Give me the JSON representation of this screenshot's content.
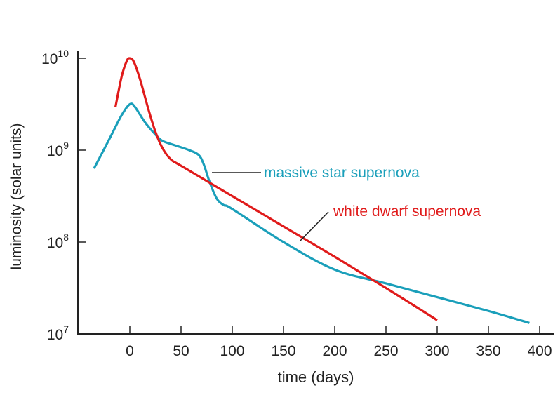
{
  "chart_data": {
    "type": "line",
    "title": "",
    "xlabel": "time (days)",
    "ylabel": "luminosity (solar units)",
    "xlim": [
      -45,
      420
    ],
    "ylim_log10": [
      7,
      10
    ],
    "y_scale": "log",
    "x_ticks": [
      0,
      50,
      100,
      150,
      200,
      250,
      300,
      350,
      400
    ],
    "x_tick_labels": [
      "0",
      "50",
      "100",
      "150",
      "200",
      "250",
      "300",
      "350",
      "400"
    ],
    "y_ticks_log10": [
      7,
      8,
      9,
      10
    ],
    "y_tick_labels": [
      {
        "base": "10",
        "exp": "7"
      },
      {
        "base": "10",
        "exp": "8"
      },
      {
        "base": "10",
        "exp": "9"
      },
      {
        "base": "10",
        "exp": "10"
      }
    ],
    "grid": false,
    "series": [
      {
        "name": "massive star supernova",
        "color": "#1a9fba",
        "x": [
          -35,
          -20,
          -8,
          0,
          5,
          15,
          25,
          32,
          45,
          58,
          67,
          72,
          78,
          85,
          92,
          100,
          150,
          200,
          250,
          300,
          350,
          390
        ],
        "log10_y": [
          8.8,
          9.12,
          9.38,
          9.5,
          9.47,
          9.3,
          9.17,
          9.1,
          9.05,
          9.0,
          8.95,
          8.85,
          8.65,
          8.47,
          8.4,
          8.36,
          8.0,
          7.7,
          7.55,
          7.4,
          7.25,
          7.12
        ]
      },
      {
        "name": "white dwarf supernova",
        "color": "#e01b1b",
        "x": [
          -14,
          -8,
          -3,
          0,
          4,
          10,
          18,
          25,
          32,
          40,
          50,
          100,
          150,
          200,
          250,
          300
        ],
        "log10_y": [
          9.47,
          9.8,
          9.97,
          10.0,
          9.96,
          9.77,
          9.45,
          9.2,
          9.02,
          8.9,
          8.83,
          8.5,
          8.17,
          7.84,
          7.5,
          7.15
        ]
      }
    ],
    "annotations": [
      "massive star supernova",
      "white dwarf supernova"
    ]
  }
}
